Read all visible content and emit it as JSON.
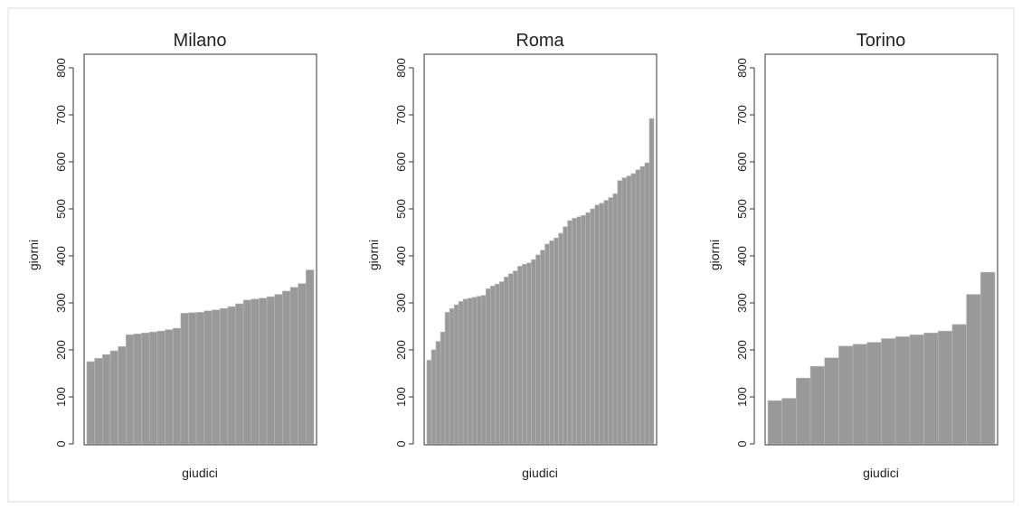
{
  "chart_data": [
    {
      "type": "bar",
      "title": "Milano",
      "xlabel": "giudici",
      "ylabel": "giorni",
      "ylim": [
        0,
        800
      ],
      "yticks": [
        0,
        100,
        200,
        300,
        400,
        500,
        600,
        700,
        800
      ],
      "values": [
        175,
        182,
        190,
        198,
        207,
        232,
        234,
        236,
        238,
        240,
        243,
        246,
        278,
        279,
        280,
        283,
        285,
        288,
        292,
        298,
        306,
        308,
        310,
        313,
        318,
        325,
        333,
        341,
        370
      ]
    },
    {
      "type": "bar",
      "title": "Roma",
      "xlabel": "giudici",
      "ylabel": "giorni",
      "ylim": [
        0,
        800
      ],
      "yticks": [
        0,
        100,
        200,
        300,
        400,
        500,
        600,
        700,
        800
      ],
      "values": [
        178,
        200,
        218,
        238,
        280,
        288,
        296,
        303,
        308,
        310,
        312,
        314,
        316,
        330,
        336,
        340,
        345,
        355,
        362,
        368,
        378,
        382,
        385,
        392,
        402,
        412,
        425,
        432,
        438,
        448,
        462,
        475,
        480,
        483,
        486,
        492,
        500,
        508,
        512,
        518,
        524,
        532,
        560,
        566,
        570,
        575,
        583,
        590,
        598,
        692
      ]
    },
    {
      "type": "bar",
      "title": "Torino",
      "xlabel": "giudici",
      "ylabel": "giorni",
      "ylim": [
        0,
        800
      ],
      "yticks": [
        0,
        100,
        200,
        300,
        400,
        500,
        600,
        700,
        800
      ],
      "values": [
        92,
        97,
        140,
        165,
        183,
        208,
        212,
        216,
        224,
        228,
        232,
        236,
        240,
        254,
        318,
        365
      ]
    }
  ],
  "style": {
    "bar_color": "#999999",
    "bar_edge": "#b8b8b8",
    "axis_color": "#333333",
    "frame_color": "#dddddd"
  }
}
